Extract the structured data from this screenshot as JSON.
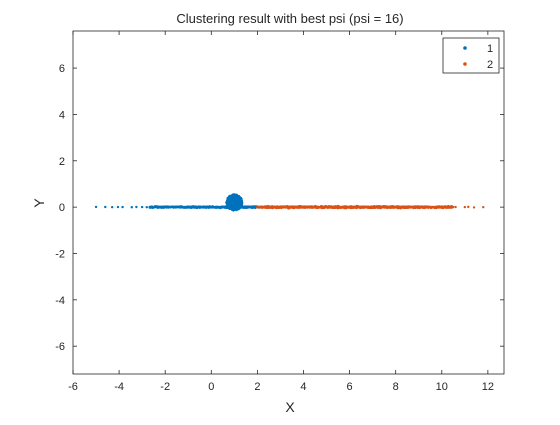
{
  "chart_data": {
    "type": "scatter",
    "title": "Clustering result with best psi (psi = 16)",
    "xlabel": "X",
    "ylabel": "Y",
    "xlim": [
      -6,
      12.7
    ],
    "ylim": [
      -7.2,
      7.6
    ],
    "xticks": [
      -6,
      -4,
      -2,
      0,
      2,
      4,
      6,
      8,
      10,
      12
    ],
    "yticks": [
      -6,
      -4,
      -2,
      0,
      2,
      4,
      6
    ],
    "grid": false,
    "legend_position": "top-right",
    "series": [
      {
        "name": "1",
        "color": "#0072BD",
        "description_range": "points along y=0 from x≈-5 to x≈2, dense cluster near (1, 0)",
        "x_min": -5.0,
        "x_max": 2.0,
        "cluster_center": [
          1.0,
          0.2
        ],
        "cluster_radius": [
          0.35,
          0.35
        ]
      },
      {
        "name": "2",
        "color": "#D95319",
        "x_min": 2.0,
        "x_max": 11.8
      }
    ]
  }
}
